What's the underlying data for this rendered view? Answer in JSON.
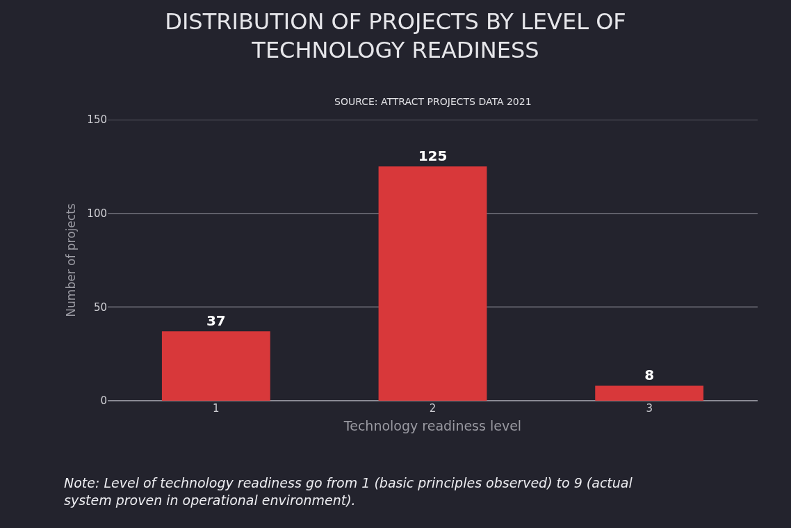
{
  "chart_data": {
    "type": "bar",
    "title": "DISTRIBUTION OF PROJECTS BY LEVEL OF\nTECHNOLOGY READINESS",
    "subtitle": "SOURCE: ATTRACT PROJECTS DATA 2021",
    "xlabel": "Technology readiness level",
    "ylabel": "Number of projects",
    "categories": [
      "1",
      "2",
      "3"
    ],
    "values": [
      37,
      125,
      8
    ],
    "color": "#d8383a",
    "ylim": [
      0,
      150
    ],
    "yticks": [
      0,
      50,
      100,
      150
    ],
    "grid": "y",
    "data_labels": true,
    "legend": false,
    "annotations": [
      "Note: Level of technology readiness go from 1 (basic principles observed) to 9 (actual\nsystem proven in operational environment)."
    ]
  }
}
